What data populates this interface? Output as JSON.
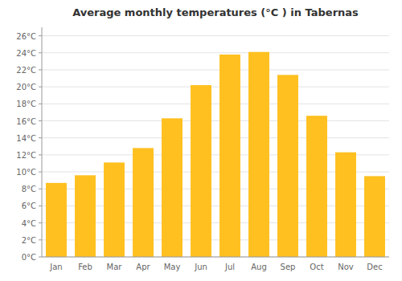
{
  "chart_data": {
    "type": "bar",
    "title": "Average monthly temperatures (°C ) in Tabernas",
    "categories": [
      "Jan",
      "Feb",
      "Mar",
      "Apr",
      "May",
      "Jun",
      "Jul",
      "Aug",
      "Sep",
      "Oct",
      "Nov",
      "Dec"
    ],
    "values": [
      8.7,
      9.6,
      11.1,
      12.8,
      16.3,
      20.2,
      23.8,
      24.1,
      21.4,
      16.6,
      12.3,
      9.5
    ],
    "color": "#FFC020",
    "ylim": [
      0,
      27
    ],
    "yticks": [
      {
        "value": 0,
        "label": "0°C"
      },
      {
        "value": 2,
        "label": "2°C"
      },
      {
        "value": 4,
        "label": "4°C"
      },
      {
        "value": 6,
        "label": "6°C"
      },
      {
        "value": 8,
        "label": "8°C"
      },
      {
        "value": 10,
        "label": "10°C"
      },
      {
        "value": 12,
        "label": "12°C"
      },
      {
        "value": 14,
        "label": "14°C"
      },
      {
        "value": 16,
        "label": "16°C"
      },
      {
        "value": 18,
        "label": "18°C"
      },
      {
        "value": 20,
        "label": "20°C"
      },
      {
        "value": 22,
        "label": "22°C"
      },
      {
        "value": 24,
        "label": "24°C"
      },
      {
        "value": 26,
        "label": "26°C"
      }
    ],
    "grid": true
  }
}
